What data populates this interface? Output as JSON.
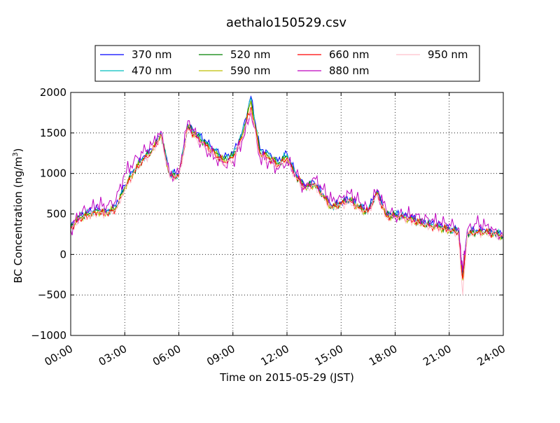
{
  "chart_data": {
    "type": "line",
    "title": "aethalo150529.csv",
    "xlabel": "Time on 2015-05-29 (JST)",
    "ylabel": "BC Concentration (ng/m",
    "ylabel_superscript": "3",
    "ylabel_suffix": ")",
    "xlim": [
      0,
      24
    ],
    "ylim": [
      -1000,
      2000
    ],
    "grid": true,
    "legend_position": "top",
    "x_unit": "hours",
    "x_ticks": [
      0,
      3,
      6,
      9,
      12,
      15,
      18,
      21,
      24
    ],
    "x_tick_labels": [
      "00:00",
      "03:00",
      "06:00",
      "09:00",
      "12:00",
      "15:00",
      "18:00",
      "21:00",
      "24:00"
    ],
    "y_ticks": [
      -1000,
      -500,
      0,
      500,
      1000,
      1500,
      2000
    ],
    "y_tick_labels": [
      "−1000",
      "−500",
      "0",
      "500",
      "1000",
      "1500",
      "2000"
    ],
    "x": [
      0,
      0.5,
      1,
      1.5,
      2,
      2.5,
      3,
      3.5,
      4,
      4.5,
      5,
      5.5,
      6,
      6.5,
      7,
      7.5,
      8,
      8.5,
      9,
      9.5,
      10,
      10.5,
      11,
      11.5,
      12,
      12.5,
      13,
      13.5,
      14,
      14.5,
      15,
      15.5,
      16,
      16.5,
      17,
      17.5,
      18,
      18.5,
      19,
      19.5,
      20,
      20.5,
      21,
      21.5,
      21.75,
      22,
      22.5,
      23,
      23.5,
      24
    ],
    "series": [
      {
        "name": "370 nm",
        "color": "#0000ff",
        "values": [
          350,
          480,
          520,
          560,
          540,
          600,
          850,
          1050,
          1200,
          1300,
          1500,
          1000,
          1000,
          1600,
          1500,
          1400,
          1300,
          1200,
          1250,
          1500,
          1950,
          1300,
          1250,
          1150,
          1250,
          1000,
          850,
          900,
          750,
          600,
          650,
          700,
          600,
          550,
          800,
          500,
          500,
          480,
          450,
          400,
          380,
          360,
          330,
          300,
          -250,
          280,
          300,
          300,
          280,
          250
        ]
      },
      {
        "name": "470 nm",
        "color": "#00bfbf",
        "values": [
          340,
          470,
          510,
          550,
          530,
          590,
          840,
          1040,
          1190,
          1290,
          1490,
          990,
          990,
          1590,
          1480,
          1380,
          1280,
          1180,
          1230,
          1480,
          1930,
          1280,
          1230,
          1130,
          1230,
          980,
          840,
          880,
          740,
          590,
          640,
          690,
          590,
          540,
          780,
          490,
          490,
          470,
          440,
          390,
          370,
          350,
          320,
          290,
          -280,
          270,
          290,
          290,
          270,
          240
        ]
      },
      {
        "name": "520 nm",
        "color": "#008000",
        "values": [
          330,
          460,
          500,
          540,
          520,
          580,
          830,
          1030,
          1180,
          1280,
          1480,
          980,
          980,
          1580,
          1460,
          1360,
          1260,
          1160,
          1210,
          1460,
          1900,
          1260,
          1210,
          1120,
          1210,
          970,
          830,
          870,
          730,
          580,
          630,
          680,
          580,
          530,
          770,
          480,
          480,
          460,
          430,
          380,
          360,
          340,
          310,
          280,
          -300,
          260,
          280,
          280,
          260,
          230
        ]
      },
      {
        "name": "590 nm",
        "color": "#bfbf00",
        "values": [
          330,
          450,
          490,
          530,
          510,
          570,
          820,
          1020,
          1170,
          1270,
          1470,
          970,
          970,
          1570,
          1450,
          1350,
          1250,
          1150,
          1200,
          1450,
          1880,
          1250,
          1200,
          1110,
          1200,
          960,
          820,
          860,
          720,
          570,
          620,
          670,
          570,
          520,
          760,
          470,
          470,
          450,
          420,
          370,
          350,
          330,
          300,
          270,
          -320,
          250,
          270,
          270,
          250,
          220
        ]
      },
      {
        "name": "660 nm",
        "color": "#ff0000",
        "values": [
          320,
          440,
          480,
          520,
          500,
          560,
          810,
          1010,
          1160,
          1260,
          1480,
          960,
          960,
          1560,
          1440,
          1340,
          1240,
          1140,
          1190,
          1440,
          1820,
          1240,
          1190,
          1100,
          1190,
          960,
          830,
          870,
          720,
          580,
          620,
          660,
          570,
          520,
          750,
          470,
          470,
          450,
          420,
          370,
          350,
          330,
          300,
          270,
          -300,
          250,
          270,
          270,
          250,
          220
        ]
      },
      {
        "name": "880 nm",
        "color": "#bf00bf",
        "values": [
          300,
          520,
          560,
          620,
          600,
          660,
          1000,
          1150,
          1250,
          1350,
          1520,
          950,
          1000,
          1650,
          1450,
          1300,
          1200,
          1100,
          1150,
          1400,
          1750,
          1200,
          1150,
          1050,
          1150,
          1000,
          800,
          950,
          800,
          650,
          700,
          750,
          650,
          560,
          800,
          550,
          480,
          500,
          480,
          450,
          420,
          400,
          380,
          330,
          -200,
          300,
          380,
          350,
          300,
          200
        ]
      },
      {
        "name": "950 nm",
        "color": "#ffc0cb",
        "values": [
          310,
          430,
          470,
          510,
          490,
          550,
          800,
          1000,
          1150,
          1250,
          1460,
          950,
          950,
          1550,
          1420,
          1320,
          1220,
          1120,
          1170,
          1420,
          1790,
          1220,
          1170,
          1080,
          1170,
          940,
          800,
          850,
          700,
          560,
          600,
          640,
          560,
          510,
          740,
          460,
          460,
          440,
          410,
          360,
          340,
          320,
          290,
          260,
          -500,
          240,
          260,
          260,
          240,
          210
        ]
      }
    ]
  }
}
